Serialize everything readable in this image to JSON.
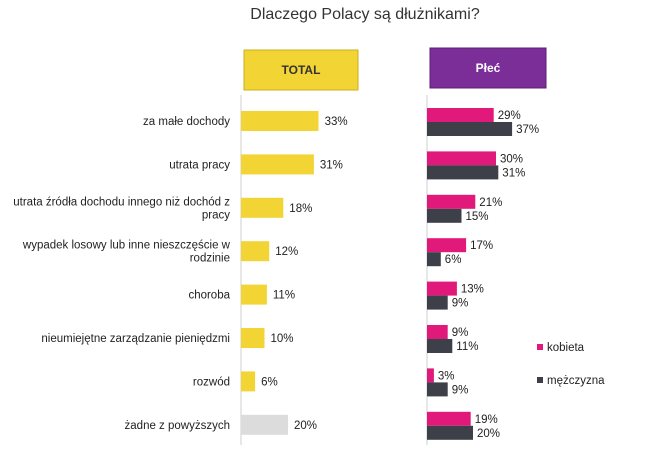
{
  "chart_data": {
    "type": "bar",
    "title": "Dlaczego Polacy są dłużnikami?",
    "total_header": "TOTAL",
    "gender_header": "Płeć",
    "categories": [
      [
        "za małe dochody"
      ],
      [
        "utrata pracy"
      ],
      [
        "utrata źródła dochodu innego niż dochód z",
        "pracy"
      ],
      [
        "wypadek losowy lub inne nieszczęście w",
        "rodzinie"
      ],
      [
        "choroba"
      ],
      [
        "nieumiejętne zarządzanie pieniędzmi"
      ],
      [
        "rozwód"
      ],
      [
        "żadne z powyższych"
      ]
    ],
    "total": [
      33,
      31,
      18,
      12,
      11,
      10,
      6,
      20
    ],
    "total_labels": [
      "33%",
      "31%",
      "18%",
      "12%",
      "11%",
      "10%",
      "6%",
      "20%"
    ],
    "series": [
      {
        "name": "kobieta",
        "values": [
          29,
          30,
          21,
          17,
          13,
          9,
          3,
          19
        ],
        "labels": [
          "29%",
          "30%",
          "21%",
          "17%",
          "13%",
          "9%",
          "3%",
          "19%"
        ]
      },
      {
        "name": "mężczyzna",
        "values": [
          37,
          31,
          15,
          6,
          9,
          11,
          9,
          20
        ],
        "labels": [
          "37%",
          "31%",
          "15%",
          "6%",
          "9%",
          "11%",
          "9%",
          "20%"
        ]
      }
    ],
    "legend_placement": "right",
    "grid": false
  },
  "colors": {
    "total_bar": "#F2D434",
    "total_bar_none": "#DCDCDC",
    "kobieta": "#E0197A",
    "mezczyzna": "#3D4048",
    "header_total_fill": "#F2D434",
    "header_total_text": "#333333",
    "header_gender_fill": "#7B2D98",
    "header_gender_text": "#ffffff",
    "axis_line": "#CFCFCF"
  }
}
